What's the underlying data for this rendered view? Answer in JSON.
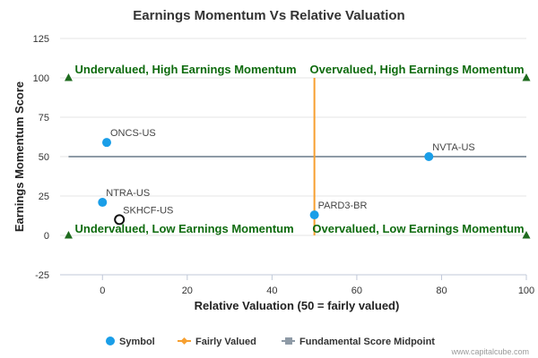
{
  "chart_data": {
    "type": "scatter",
    "title": "Earnings Momentum Vs Relative Valuation",
    "xlabel": "Relative Valuation (50 = fairly valued)",
    "ylabel": "Earnings Momentum Score",
    "xlim": [
      -10,
      100
    ],
    "ylim": [
      -25,
      125
    ],
    "x_ticks": [
      0,
      20,
      40,
      60,
      80,
      100
    ],
    "y_ticks": [
      -25,
      0,
      25,
      50,
      75,
      100,
      125
    ],
    "grid": "horizontal",
    "points": [
      {
        "label": "ONCS-US",
        "x": 1,
        "y": 59,
        "style": "filled"
      },
      {
        "label": "NVTA-US",
        "x": 77,
        "y": 50,
        "style": "filled"
      },
      {
        "label": "NTRA-US",
        "x": 0,
        "y": 21,
        "style": "filled"
      },
      {
        "label": "SKHCF-US",
        "x": 4,
        "y": 10,
        "style": "hollow"
      },
      {
        "label": "PARD3-BR",
        "x": 50,
        "y": 13,
        "style": "filled"
      }
    ],
    "fairly_valued_x": 50,
    "midpoint_y": 50,
    "quadrant_labels": {
      "top_left": "Undervalued, High Earnings Momentum",
      "top_right": "Overvalued, High Earnings Momentum",
      "bottom_left": "Undervalued, Low Earnings Momentum",
      "bottom_right": "Overvalued, Low Earnings Momentum"
    },
    "corner_markers": [
      {
        "x": -8,
        "y": 100
      },
      {
        "x": 100,
        "y": 100
      },
      {
        "x": -8,
        "y": 0
      },
      {
        "x": 100,
        "y": 0
      }
    ],
    "legend": {
      "position": "bottom",
      "items": [
        {
          "name": "Symbol",
          "kind": "dot"
        },
        {
          "name": "Fairly Valued",
          "kind": "line-diamond"
        },
        {
          "name": "Fundamental Score Midpoint",
          "kind": "line-square"
        }
      ]
    },
    "colors": {
      "symbol": "#1a9ee8",
      "fairly_valued": "#f7a030",
      "midpoint": "#8e9aa6",
      "quadrant_text": "#0e6b0e",
      "marker": "#1e6b1e",
      "axis_text": "#333333"
    },
    "credit": "www.capitalcube.com"
  }
}
